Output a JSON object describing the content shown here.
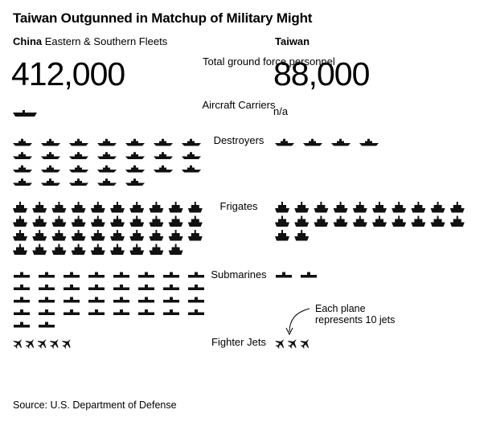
{
  "title": "Taiwan Outgunned in Matchup of Military Might",
  "china_label_bold": "China",
  "china_label_rest": " Eastern & Southern Fleets",
  "taiwan_label": "Taiwan",
  "note": [
    "Each plane",
    "represents 10 jets"
  ],
  "source": "Source: U.S. Department of Defense",
  "colors": {
    "icon": "#111111",
    "text": "#000000",
    "background": "#ffffff"
  },
  "chart_data": {
    "type": "table",
    "title": "Taiwan Outgunned in Matchup of Military Might",
    "series": [
      {
        "name": "China Eastern & Southern Fleets"
      },
      {
        "name": "Taiwan"
      }
    ],
    "rows": [
      {
        "category": "Total ground force personnel",
        "china": 412000,
        "taiwan": 88000,
        "china_text": "412,000",
        "taiwan_text": "88,000"
      },
      {
        "category": "Aircraft Carriers",
        "china": 1,
        "taiwan": null,
        "taiwan_text": "n/a",
        "icon": "carrier-icon"
      },
      {
        "category": "Destroyers",
        "china": 26,
        "taiwan": 4,
        "icon": "destroyer-icon"
      },
      {
        "category": "Frigates",
        "china": 39,
        "taiwan": 22,
        "icon": "frigate-icon"
      },
      {
        "category": "Submarines",
        "china": 34,
        "taiwan": 2,
        "icon": "submarine-icon"
      },
      {
        "category": "Fighter Jets",
        "china": 48,
        "taiwan": 30,
        "unit_per_icon": 10,
        "icon": "fighter-jet-icon"
      }
    ]
  }
}
